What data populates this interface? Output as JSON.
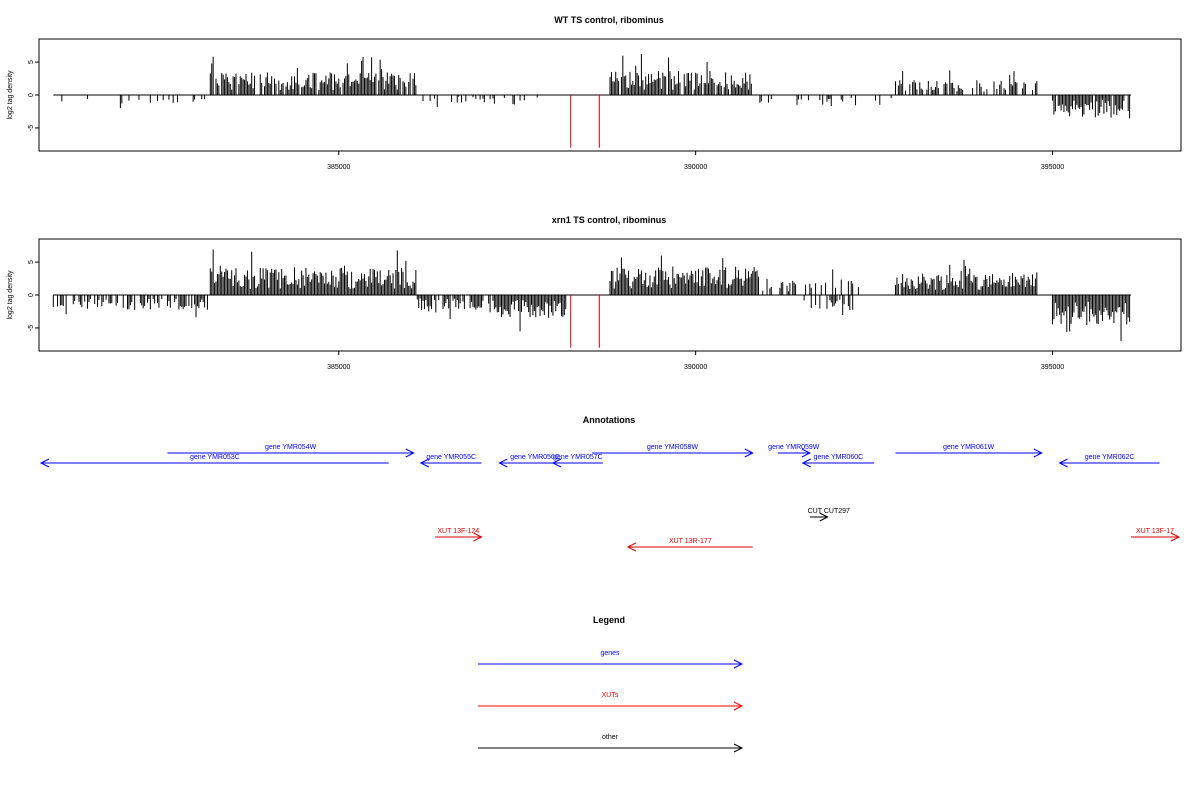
{
  "chart_data": [
    {
      "type": "bar",
      "title": "WT TS control, ribominus",
      "ylabel": "log2 tag density",
      "xlabel": "",
      "xlim": [
        380800,
        396800
      ],
      "ylim": [
        -8.5,
        8.5
      ],
      "x_ticks": [
        385000,
        390000,
        395000
      ],
      "x_tick_labels": [
        "385000",
        "390000",
        "395000"
      ],
      "y_ticks": [
        5,
        0,
        -5
      ],
      "y_tick_labels": [
        "5",
        "0",
        "-5"
      ],
      "data_range": [
        381000,
        396100
      ],
      "red_lines": [
        {
          "x": 388250,
          "value": -8
        },
        {
          "x": 388650,
          "value": -8
        }
      ],
      "segments": [
        {
          "start": 381000,
          "end": 383200,
          "sign": -1,
          "amp": 1.4,
          "density": 0.12
        },
        {
          "start": 383200,
          "end": 386100,
          "sign": 1,
          "amp": 3.0,
          "density": 0.9
        },
        {
          "start": 386100,
          "end": 387400,
          "sign": -1,
          "amp": 1.0,
          "density": 0.35
        },
        {
          "start": 387400,
          "end": 388100,
          "sign": -1,
          "amp": 1.5,
          "density": 0.15
        },
        {
          "start": 388800,
          "end": 390800,
          "sign": 1,
          "amp": 3.2,
          "density": 0.95
        },
        {
          "start": 390800,
          "end": 392800,
          "sign": -1,
          "amp": 1.5,
          "density": 0.2
        },
        {
          "start": 392800,
          "end": 394800,
          "sign": 1,
          "amp": 2.0,
          "density": 0.6
        },
        {
          "start": 395000,
          "end": 396100,
          "sign": -1,
          "amp": 3.0,
          "density": 0.95
        }
      ]
    },
    {
      "type": "bar",
      "title": "xrn1 TS control, ribominus",
      "ylabel": "log2 tag density",
      "xlabel": "",
      "xlim": [
        380800,
        396800
      ],
      "ylim": [
        -8.5,
        8.5
      ],
      "x_ticks": [
        385000,
        390000,
        395000
      ],
      "x_tick_labels": [
        "385000",
        "390000",
        "395000"
      ],
      "y_ticks": [
        5,
        0,
        -5
      ],
      "y_tick_labels": [
        "5",
        "0",
        "-5"
      ],
      "data_range": [
        381000,
        396100
      ],
      "red_lines": [
        {
          "x": 388250,
          "value": -8
        },
        {
          "x": 388650,
          "value": -8
        }
      ],
      "segments": [
        {
          "start": 381000,
          "end": 383200,
          "sign": -1,
          "amp": 2.0,
          "density": 0.55
        },
        {
          "start": 383200,
          "end": 386100,
          "sign": 1,
          "amp": 3.6,
          "density": 1.0
        },
        {
          "start": 386100,
          "end": 387200,
          "sign": -1,
          "amp": 2.0,
          "density": 0.8
        },
        {
          "start": 387200,
          "end": 388200,
          "sign": -1,
          "amp": 3.0,
          "density": 1.0
        },
        {
          "start": 388800,
          "end": 390900,
          "sign": 1,
          "amp": 3.8,
          "density": 1.0
        },
        {
          "start": 390900,
          "end": 392300,
          "sign": 1,
          "amp": 2.2,
          "density": 0.4
        },
        {
          "start": 391500,
          "end": 392300,
          "sign": -1,
          "amp": 2.0,
          "density": 0.5
        },
        {
          "start": 392800,
          "end": 394800,
          "sign": 1,
          "amp": 3.0,
          "density": 0.95
        },
        {
          "start": 395000,
          "end": 396100,
          "sign": -1,
          "amp": 4.0,
          "density": 1.0
        }
      ]
    }
  ],
  "annotations": {
    "title": "Annotations",
    "genes": [
      {
        "label": "gene YMR053C",
        "start": 380800,
        "end": 385700,
        "strand": "-",
        "row": 1
      },
      {
        "label": "gene YMR054W",
        "start": 382600,
        "end": 386050,
        "strand": "+",
        "row": 0
      },
      {
        "label": "gene YMR055C",
        "start": 386150,
        "end": 387000,
        "strand": "-",
        "row": 1
      },
      {
        "label": "gene YMR056C",
        "start": 387250,
        "end": 388250,
        "strand": "-",
        "row": 1
      },
      {
        "label": "gene YMR057C",
        "start": 388000,
        "end": 388700,
        "strand": "-",
        "row": 1
      },
      {
        "label": "gene YMR058W",
        "start": 388550,
        "end": 390800,
        "strand": "+",
        "row": 0
      },
      {
        "label": "gene YMR059W",
        "start": 391150,
        "end": 391600,
        "strand": "+",
        "row": 0
      },
      {
        "label": "gene YMR060C",
        "start": 391500,
        "end": 392500,
        "strand": "-",
        "row": 1
      },
      {
        "label": "gene YMR061W",
        "start": 392800,
        "end": 394850,
        "strand": "+",
        "row": 0
      },
      {
        "label": "gene YMR062C",
        "start": 395100,
        "end": 396500,
        "strand": "-",
        "row": 1
      }
    ],
    "cuts": [
      {
        "label": "CUT CUT297",
        "start": 391600,
        "end": 391850,
        "strand": "+"
      }
    ],
    "xuts": [
      {
        "label": "XUT 13F-124",
        "start": 386350,
        "end": 387000,
        "strand": "+",
        "row": 0
      },
      {
        "label": "XUT 13R-177",
        "start": 389050,
        "end": 390800,
        "strand": "-",
        "row": 1
      },
      {
        "label": "XUT 13F-17",
        "start": 396100,
        "end": 396800,
        "strand": "+",
        "row": 0
      }
    ]
  },
  "legend": {
    "title": "Legend",
    "items": [
      {
        "label": "genes",
        "color": "#0000ff"
      },
      {
        "label": "XUTs",
        "color": "#ff0000"
      },
      {
        "label": "other",
        "color": "#000000"
      }
    ]
  },
  "colors": {
    "gene": "#0000ff",
    "xut": "#dd0000",
    "other": "#000000",
    "bars": "#000000",
    "axis": "#000000"
  }
}
